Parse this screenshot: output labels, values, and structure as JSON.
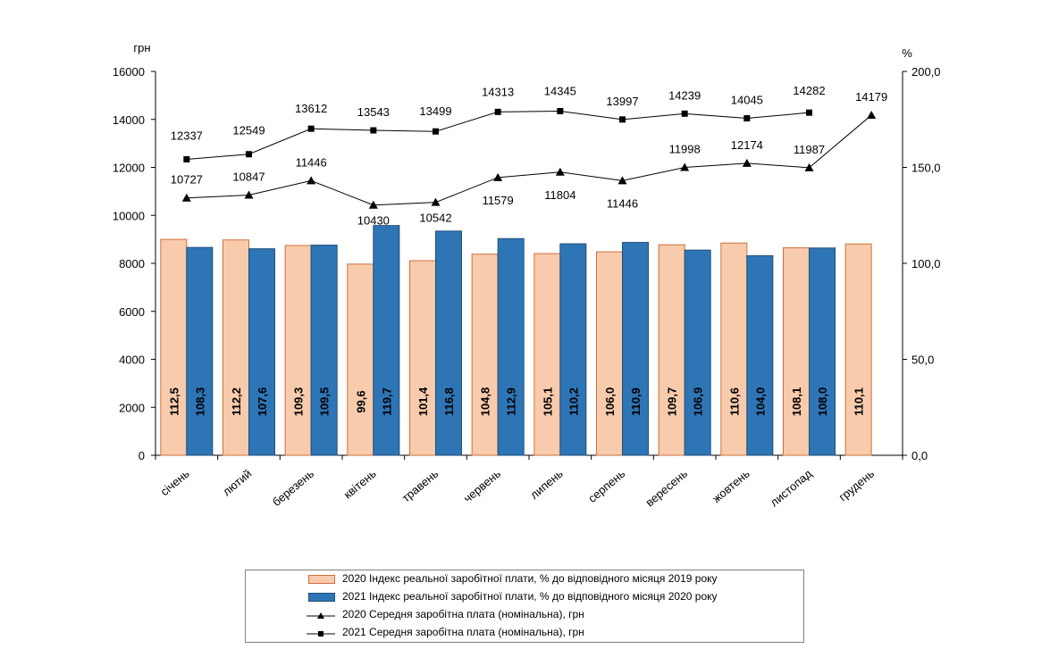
{
  "chart_data": {
    "type": "bar",
    "categories": [
      "січень",
      "лютий",
      "березень",
      "квітень",
      "травень",
      "червень",
      "липень",
      "серпень",
      "вересень",
      "жовтень",
      "листопад",
      "грудень"
    ],
    "left_axis": {
      "unit": "грн",
      "range": [
        0,
        16000
      ],
      "ticks": [
        "0",
        "2000",
        "4000",
        "6000",
        "8000",
        "10000",
        "12000",
        "14000",
        "16000"
      ]
    },
    "right_axis": {
      "unit": "%",
      "range": [
        0,
        200
      ],
      "ticks": [
        "0,0",
        "50,0",
        "100,0",
        "150,0",
        "200,0"
      ]
    },
    "bar_series": [
      {
        "name": "2020 Індекс реальної заробітної плати, % до відповідного місяця 2019 року",
        "color": "#f8cbad",
        "border": "#d0703a",
        "values": [
          112.5,
          112.2,
          109.3,
          99.6,
          101.4,
          104.8,
          105.1,
          106.0,
          109.7,
          110.6,
          108.1,
          110.1
        ],
        "labels": [
          "112,5",
          "112,2",
          "109,3",
          "99,6",
          "101,4",
          "104,8",
          "105,1",
          "106,0",
          "109,7",
          "110,6",
          "108,1",
          "110,1"
        ]
      },
      {
        "name": "2021 Індекс реальної заробітної плати, % до відповідного місяця 2020 року",
        "color": "#2e75b6",
        "border": "#1f4e79",
        "values": [
          108.3,
          107.6,
          109.5,
          119.7,
          116.8,
          112.9,
          110.2,
          110.9,
          106.9,
          104.0,
          108.0,
          null
        ],
        "labels": [
          "108,3",
          "107,6",
          "109,5",
          "119,7",
          "116,8",
          "112,9",
          "110,2",
          "110,9",
          "106,9",
          "104,0",
          "108,0",
          ""
        ]
      }
    ],
    "line_series": [
      {
        "name": "2020 Середня заробітна плата (номінальна), грн",
        "marker": "triangle",
        "values": [
          10727,
          10847,
          11446,
          10430,
          10542,
          11579,
          11804,
          11446,
          11998,
          12174,
          11987,
          14179
        ],
        "labels": [
          "10727",
          "10847",
          "11446",
          "10430",
          "10542",
          "11579",
          "11804",
          "11446",
          "11998",
          "12174",
          "11987",
          "14179"
        ]
      },
      {
        "name": "2021 Середня заробітна плата (номінальна), грн",
        "marker": "square",
        "values": [
          12337,
          12549,
          13612,
          13543,
          13499,
          14313,
          14345,
          13997,
          14239,
          14045,
          14282,
          null
        ],
        "labels": [
          "12337",
          "12549",
          "13612",
          "13543",
          "13499",
          "14313",
          "14345",
          "13997",
          "14239",
          "14045",
          "14282",
          ""
        ]
      }
    ],
    "legend_placement": "bottom",
    "grid": false
  }
}
